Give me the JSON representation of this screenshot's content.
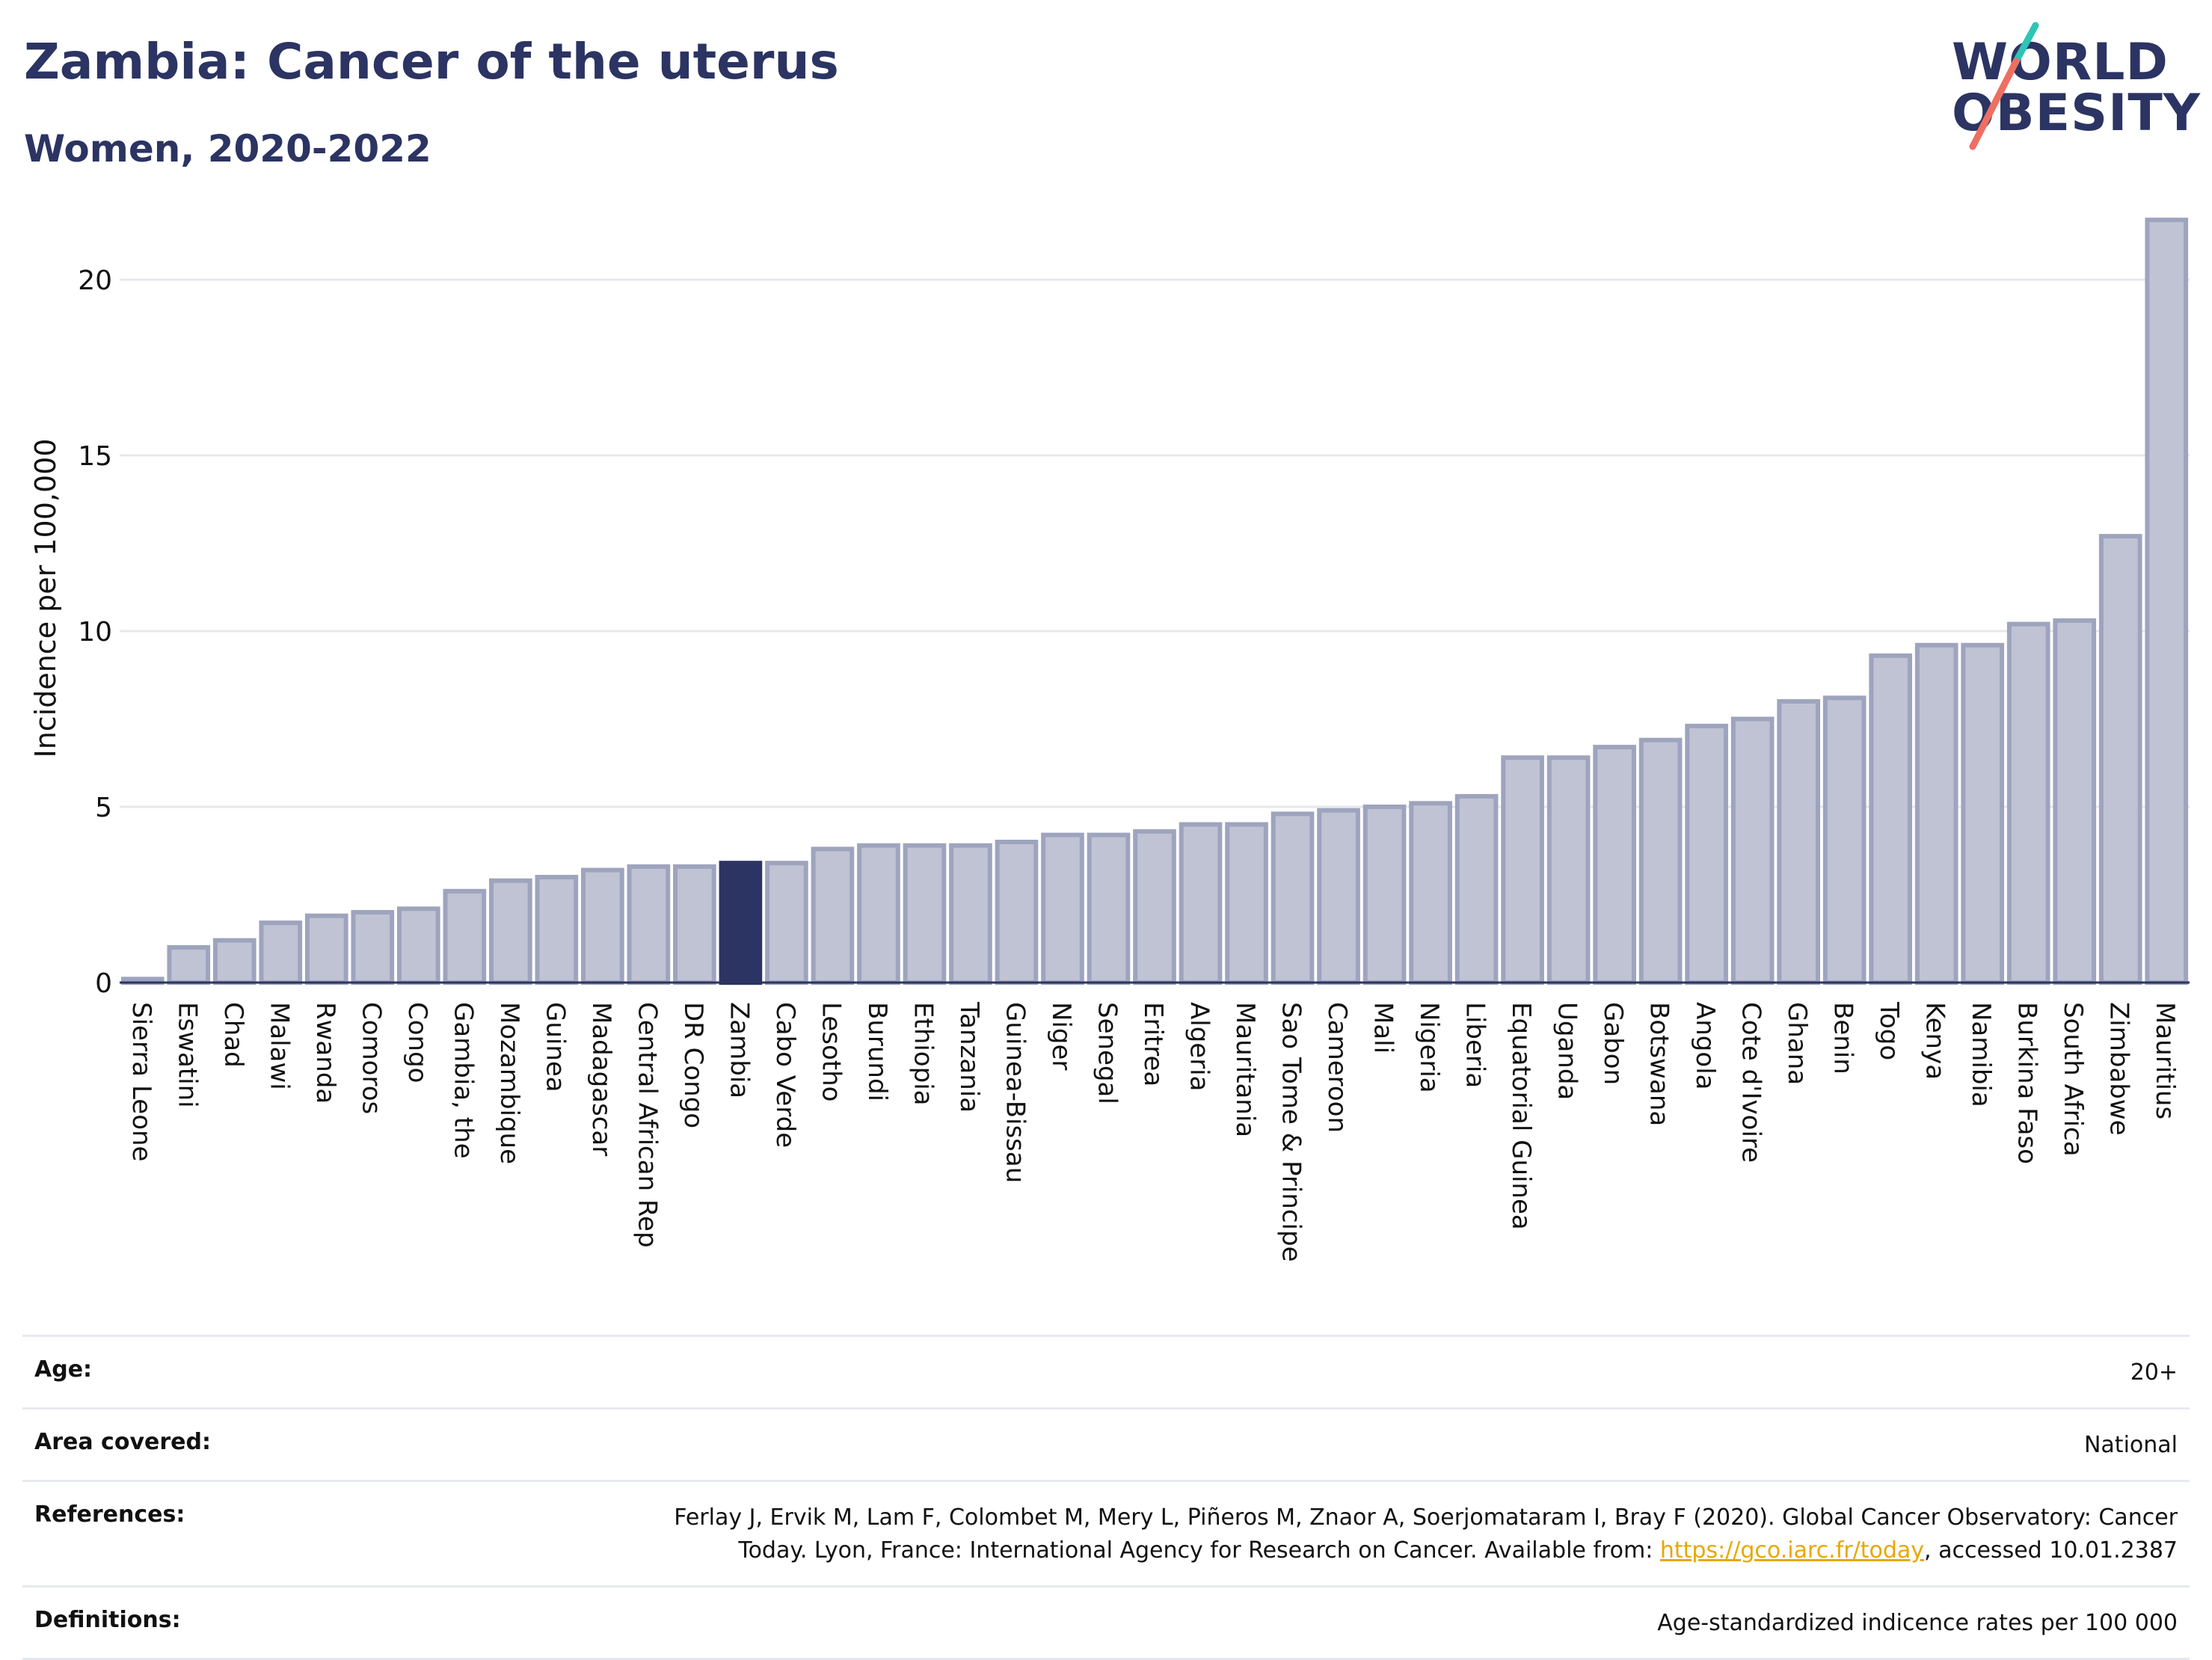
{
  "header": {
    "title": "Zambia: Cancer of the uterus",
    "subtitle": "Women, 2020-2022"
  },
  "logo": {
    "line1": "WORLD",
    "line2": "OBESITY"
  },
  "colors": {
    "bar_fill": "#bfc3d3",
    "bar_stroke": "#9ea4bd",
    "highlight": "#2b3462",
    "grid": "#e6e8ef",
    "axis": "#2b3462",
    "logo_teal": "#2ec4b6",
    "logo_coral": "#ef6e62"
  },
  "chart_data": {
    "type": "bar",
    "ylabel": "Incidence per 100,000",
    "xlabel": "",
    "ylim": [
      0,
      22
    ],
    "yticks": [
      0,
      5,
      10,
      15,
      20
    ],
    "grid": true,
    "highlight": "Zambia",
    "categories": [
      "Sierra Leone",
      "Eswatini",
      "Chad",
      "Malawi",
      "Rwanda",
      "Comoros",
      "Congo",
      "Gambia, the",
      "Mozambique",
      "Guinea",
      "Madagascar",
      "Central African Rep",
      "DR Congo",
      "Zambia",
      "Cabo Verde",
      "Lesotho",
      "Burundi",
      "Ethiopia",
      "Tanzania",
      "Guinea-Bissau",
      "Niger",
      "Senegal",
      "Eritrea",
      "Algeria",
      "Mauritania",
      "Sao Tome & Principe",
      "Cameroon",
      "Mali",
      "Nigeria",
      "Liberia",
      "Equatorial Guinea",
      "Uganda",
      "Gabon",
      "Botswana",
      "Angola",
      "Cote d'Ivoire",
      "Ghana",
      "Benin",
      "Togo",
      "Kenya",
      "Namibia",
      "Burkina Faso",
      "South Africa",
      "Zimbabwe",
      "Mauritius"
    ],
    "values": [
      0.1,
      1.0,
      1.2,
      1.7,
      1.9,
      2.0,
      2.1,
      2.6,
      2.9,
      3.0,
      3.2,
      3.3,
      3.3,
      3.4,
      3.4,
      3.8,
      3.9,
      3.9,
      3.9,
      4.0,
      4.2,
      4.2,
      4.3,
      4.5,
      4.5,
      4.8,
      4.9,
      5.0,
      5.1,
      5.3,
      6.4,
      6.4,
      6.7,
      6.9,
      7.3,
      7.5,
      8.0,
      8.1,
      9.3,
      9.6,
      9.6,
      10.2,
      10.3,
      12.7,
      21.7
    ]
  },
  "info": {
    "age_label": "Age:",
    "age_value": "20+",
    "area_label": "Area covered:",
    "area_value": "National",
    "references_label": "References:",
    "references_line1": "Ferlay J, Ervik M, Lam F, Colombet M, Mery L, Piñeros M, Znaor A, Soerjomataram I, Bray F (2020). Global Cancer Observatory: Cancer",
    "references_line2_pre": "Today. Lyon, France: International Agency for Research on Cancer. Available from: ",
    "references_link": "https://gco.iarc.fr/today",
    "references_line2_post": ", accessed 10.01.2387",
    "definitions_label": "Definitions:",
    "definitions_value": "Age-standardized indicence rates per 100 000"
  }
}
